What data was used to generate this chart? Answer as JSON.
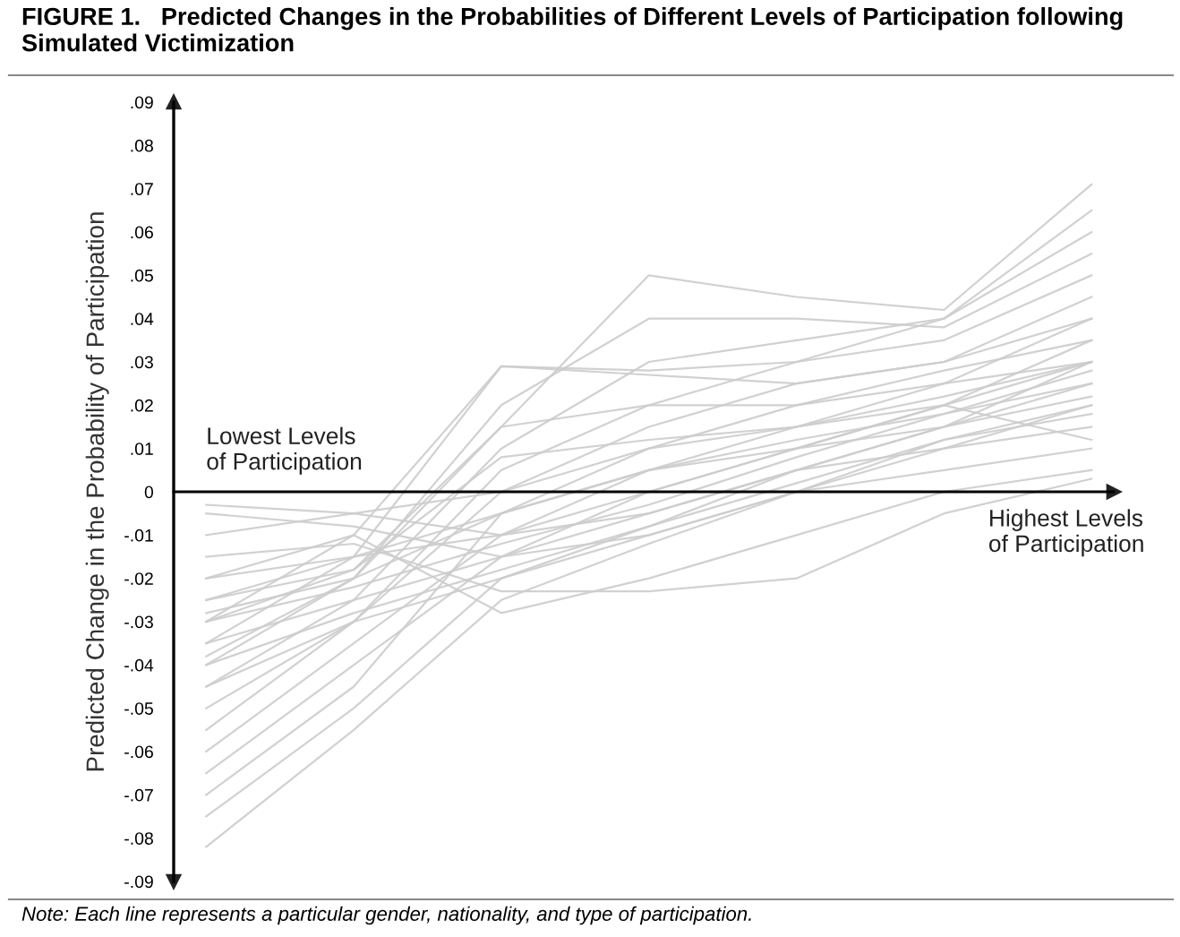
{
  "chart_data": {
    "type": "line",
    "title": "FIGURE 1.   Predicted Changes in the Probabilities of Different Levels of Participation following Simulated Victimization",
    "ylabel": "Predicted Change in the Probability of Participation",
    "annotations": [
      "Lowest Levels\nof Participation",
      "Highest Levels\nof Participation",
      "Note: Each line represents a particular gender, nationality, and type of participation."
    ],
    "categories": [
      null,
      null,
      null,
      null,
      null,
      null,
      null
    ],
    "ylim": [
      -0.09,
      0.09
    ],
    "yticks": [
      {
        "value": 0.09,
        "label": ".09"
      },
      {
        "value": 0.08,
        "label": ".08"
      },
      {
        "value": 0.07,
        "label": ".07"
      },
      {
        "value": 0.06,
        "label": ".06"
      },
      {
        "value": 0.05,
        "label": ".05"
      },
      {
        "value": 0.04,
        "label": ".04"
      },
      {
        "value": 0.03,
        "label": ".03"
      },
      {
        "value": 0.02,
        "label": ".02"
      },
      {
        "value": 0.01,
        "label": ".01"
      },
      0,
      {
        "value": -0.01,
        "label": "-.01"
      },
      {
        "value": -0.02,
        "label": "-.02"
      },
      {
        "value": -0.03,
        "label": "-.03"
      },
      {
        "value": -0.04,
        "label": "-.04"
      },
      {
        "value": -0.05,
        "label": "-.05"
      },
      {
        "value": -0.06,
        "label": "-.06"
      },
      {
        "value": -0.07,
        "label": "-.07"
      },
      {
        "value": -0.08,
        "label": "-.08"
      },
      {
        "value": -0.09,
        "label": "-.09"
      }
    ],
    "legend": false,
    "line_style": "solid",
    "series": [
      {
        "color": "#cccccc",
        "values": [
          -0.082,
          -0.055,
          -0.025,
          -0.012,
          0.0,
          0.01,
          0.02
        ]
      },
      {
        "color": "#cccccc",
        "values": [
          -0.075,
          -0.05,
          -0.02,
          -0.008,
          0.005,
          0.015,
          0.03
        ]
      },
      {
        "color": "#cccccc",
        "values": [
          -0.065,
          -0.04,
          -0.015,
          0.0,
          0.01,
          0.02,
          0.035
        ]
      },
      {
        "color": "#cccccc",
        "values": [
          -0.055,
          -0.03,
          0.0,
          0.015,
          0.025,
          0.03,
          0.045
        ]
      },
      {
        "color": "#cccccc",
        "values": [
          -0.045,
          -0.025,
          0.01,
          0.03,
          0.035,
          0.04,
          0.06
        ]
      },
      {
        "color": "#cccccc",
        "values": [
          -0.04,
          -0.02,
          0.015,
          0.05,
          0.045,
          0.042,
          0.071
        ]
      },
      {
        "color": "#cccccc",
        "values": [
          -0.035,
          -0.015,
          0.029,
          0.028,
          0.03,
          0.035,
          0.05
        ]
      },
      {
        "color": "#cccccc",
        "values": [
          -0.03,
          -0.01,
          0.029,
          0.027,
          0.025,
          0.03,
          0.04
        ]
      },
      {
        "color": "#cccccc",
        "values": [
          -0.03,
          -0.018,
          0.015,
          0.02,
          0.02,
          0.028,
          0.035
        ]
      },
      {
        "color": "#cccccc",
        "values": [
          -0.025,
          -0.015,
          -0.01,
          0.0,
          0.01,
          0.015,
          0.025
        ]
      },
      {
        "color": "#cccccc",
        "values": [
          -0.02,
          -0.01,
          -0.028,
          -0.02,
          -0.01,
          0.0,
          0.005
        ]
      },
      {
        "color": "#cccccc",
        "values": [
          -0.015,
          -0.012,
          -0.023,
          -0.023,
          -0.02,
          -0.005,
          0.003
        ]
      },
      {
        "color": "#cccccc",
        "values": [
          -0.01,
          -0.005,
          -0.01,
          -0.005,
          0.005,
          0.01,
          0.015
        ]
      },
      {
        "color": "#cccccc",
        "values": [
          -0.005,
          -0.008,
          -0.015,
          -0.01,
          0.0,
          0.005,
          0.01
        ]
      },
      {
        "color": "#cccccc",
        "values": [
          -0.003,
          -0.005,
          0.0,
          0.01,
          0.015,
          0.02,
          0.03
        ]
      },
      {
        "color": "#cccccc",
        "values": [
          -0.035,
          -0.025,
          -0.015,
          -0.005,
          0.005,
          0.015,
          0.022
        ]
      },
      {
        "color": "#cccccc",
        "values": [
          -0.03,
          -0.022,
          -0.012,
          -0.003,
          0.008,
          0.018,
          0.025
        ]
      },
      {
        "color": "#cccccc",
        "values": [
          -0.04,
          -0.028,
          -0.018,
          -0.008,
          0.002,
          0.012,
          0.02
        ]
      },
      {
        "color": "#cccccc",
        "values": [
          -0.06,
          -0.035,
          -0.01,
          0.005,
          0.012,
          0.018,
          0.028
        ]
      },
      {
        "color": "#cccccc",
        "values": [
          -0.07,
          -0.045,
          -0.005,
          0.01,
          0.02,
          0.025,
          0.04
        ]
      },
      {
        "color": "#cccccc",
        "values": [
          -0.05,
          -0.03,
          0.005,
          0.02,
          0.03,
          0.04,
          0.065
        ]
      },
      {
        "color": "#cccccc",
        "values": [
          -0.028,
          -0.02,
          0.02,
          0.04,
          0.04,
          0.038,
          0.055
        ]
      },
      {
        "color": "#cccccc",
        "values": [
          -0.038,
          -0.02,
          -0.005,
          0.005,
          0.015,
          0.022,
          0.03
        ]
      },
      {
        "color": "#cccccc",
        "values": [
          -0.045,
          -0.03,
          -0.02,
          -0.01,
          0.0,
          0.012,
          0.018
        ]
      },
      {
        "color": "#cccccc",
        "values": [
          -0.02,
          -0.015,
          -0.005,
          0.005,
          0.01,
          0.02,
          0.012
        ]
      },
      {
        "color": "#cccccc",
        "values": [
          -0.025,
          -0.018,
          0.008,
          0.012,
          0.015,
          0.025,
          0.03
        ]
      }
    ]
  }
}
